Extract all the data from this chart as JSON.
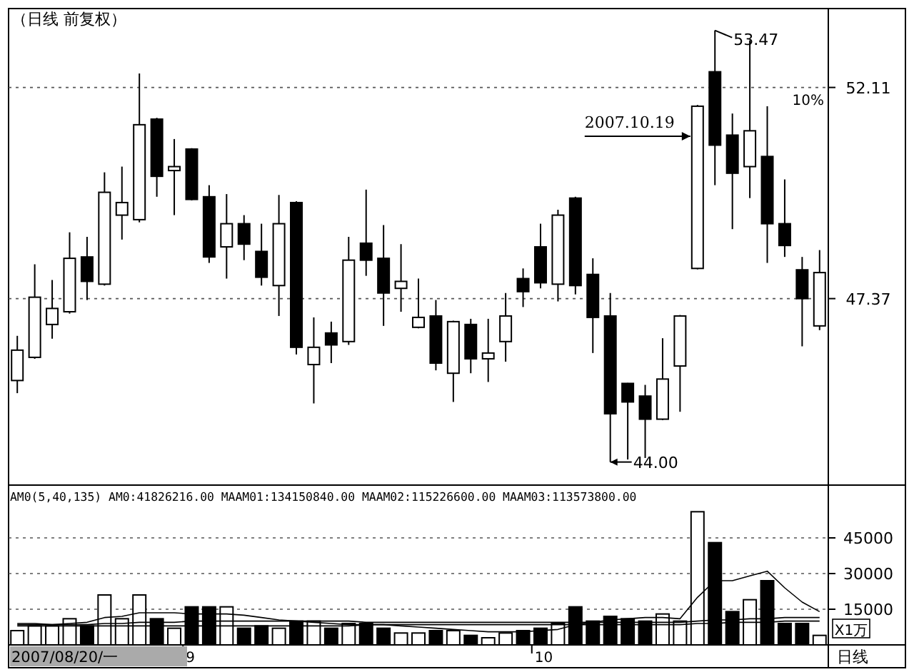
{
  "chart_data": [
    {
      "type": "candlestick",
      "title": "（日线 前复权）",
      "log": "y",
      "grid": "y",
      "tick_labels": "y",
      "ylim": [
        43.6,
        54.0
      ],
      "yticks": [
        47.37,
        52.11
      ],
      "categories": [
        null,
        null,
        null,
        null,
        null,
        null,
        null,
        null,
        null,
        null,
        null,
        null,
        null,
        null,
        null,
        null,
        null,
        null,
        null,
        null,
        null,
        null,
        null,
        null,
        null,
        null,
        null,
        null,
        null,
        null,
        null,
        null,
        null,
        null,
        null,
        null,
        null,
        null,
        null,
        null,
        null,
        null,
        null,
        null,
        null,
        null,
        null
      ],
      "ohlc": [
        [
          45.65,
          46.58,
          45.39,
          46.28
        ],
        [
          46.13,
          48.11,
          46.1,
          47.4
        ],
        [
          46.82,
          47.77,
          46.52,
          47.16
        ],
        [
          47.09,
          48.81,
          47.05,
          48.24
        ],
        [
          48.27,
          48.71,
          47.34,
          47.74
        ],
        [
          47.68,
          50.15,
          47.65,
          49.7
        ],
        [
          49.19,
          50.28,
          48.65,
          49.47
        ],
        [
          49.09,
          52.44,
          49.03,
          51.24
        ],
        [
          51.37,
          51.4,
          49.6,
          50.06
        ],
        [
          50.19,
          50.91,
          49.19,
          50.28
        ],
        [
          50.68,
          50.7,
          49.52,
          49.54
        ],
        [
          49.6,
          49.86,
          48.14,
          48.27
        ],
        [
          48.49,
          49.66,
          47.8,
          49.0
        ],
        [
          49.0,
          49.19,
          48.2,
          48.55
        ],
        [
          48.39,
          49.0,
          47.65,
          47.83
        ],
        [
          47.65,
          49.64,
          47.0,
          49.0
        ],
        [
          49.47,
          49.5,
          46.19,
          46.34
        ],
        [
          45.98,
          46.97,
          45.18,
          46.34
        ],
        [
          46.64,
          46.88,
          46.01,
          46.39
        ],
        [
          46.46,
          48.71,
          46.39,
          48.2
        ],
        [
          48.57,
          49.76,
          47.86,
          48.2
        ],
        [
          48.24,
          48.97,
          46.79,
          47.49
        ],
        [
          47.59,
          48.55,
          47.09,
          47.74
        ],
        [
          46.76,
          47.8,
          46.74,
          46.97
        ],
        [
          47.0,
          47.34,
          45.86,
          46.01
        ],
        [
          45.8,
          46.9,
          45.21,
          46.88
        ],
        [
          46.82,
          46.94,
          45.8,
          46.1
        ],
        [
          46.1,
          46.94,
          45.62,
          46.22
        ],
        [
          46.46,
          47.49,
          46.04,
          47.0
        ],
        [
          47.8,
          48.02,
          47.19,
          47.52
        ],
        [
          48.49,
          49.0,
          47.59,
          47.71
        ],
        [
          47.68,
          49.31,
          47.31,
          49.19
        ],
        [
          49.57,
          49.6,
          47.46,
          47.65
        ],
        [
          47.89,
          48.24,
          46.22,
          46.97
        ],
        [
          47.0,
          47.49,
          44.0,
          44.97
        ],
        [
          45.59,
          45.6,
          44.05,
          45.21
        ],
        [
          45.33,
          45.56,
          44.08,
          44.86
        ],
        [
          44.86,
          46.53,
          44.84,
          45.68
        ],
        [
          45.95,
          47.02,
          45.01,
          47.0
        ],
        [
          48.02,
          51.7,
          48.0,
          51.67
        ],
        [
          52.48,
          53.47,
          49.86,
          50.77
        ],
        [
          51.0,
          51.5,
          48.88,
          50.13
        ],
        [
          50.28,
          53.23,
          49.57,
          51.1
        ],
        [
          50.51,
          51.67,
          48.14,
          49.0
        ],
        [
          49.0,
          49.99,
          48.27,
          48.52
        ],
        [
          47.99,
          48.27,
          46.36,
          47.37
        ],
        [
          46.79,
          48.42,
          46.7,
          47.93
        ]
      ],
      "annotations": [
        "2007.10.19",
        "53.47",
        "44.00",
        "10%"
      ]
    },
    {
      "type": "bar",
      "title": "AM0(5,40,135) AM0:41826216.00 MAAM01:134150840.00 MAAM02:115226600.00 MAAM03:113573800.00",
      "grid": "y",
      "ylabel": "X1万",
      "ylim": [
        0,
        66000
      ],
      "yticks": [
        15000,
        30000,
        45000
      ],
      "categories": [
        null,
        null,
        null,
        null,
        null,
        null,
        null,
        null,
        null,
        null,
        "9",
        null,
        null,
        null,
        null,
        null,
        null,
        null,
        null,
        null,
        null,
        null,
        null,
        null,
        null,
        null,
        null,
        null,
        null,
        null,
        "10",
        null,
        null,
        null,
        null,
        null,
        null,
        null,
        null,
        null,
        null,
        null,
        null,
        null,
        null,
        null,
        null
      ],
      "series": [
        {
          "type": "bar",
          "values": [
            6000,
            8000,
            8000,
            11000,
            8000,
            21000,
            11000,
            21000,
            11000,
            7000,
            16000,
            16000,
            16000,
            7000,
            8000,
            7000,
            10000,
            10000,
            7000,
            9000,
            9000,
            7000,
            5000,
            5000,
            6000,
            6000,
            4000,
            3000,
            5000,
            6000,
            7000,
            9000,
            16000,
            10000,
            12000,
            11000,
            10000,
            13000,
            10000,
            56000,
            43000,
            14000,
            19000,
            27000,
            9000,
            9000,
            4000
          ],
          "colors": [
            "#ffffff",
            "#ffffff",
            "#ffffff",
            "#ffffff",
            "#000000",
            "#ffffff",
            "#ffffff",
            "#ffffff",
            "#000000",
            "#ffffff",
            "#000000",
            "#000000",
            "#ffffff",
            "#000000",
            "#000000",
            "#ffffff",
            "#000000",
            "#ffffff",
            "#000000",
            "#ffffff",
            "#000000",
            "#000000",
            "#ffffff",
            "#ffffff",
            "#000000",
            "#ffffff",
            "#000000",
            "#ffffff",
            "#ffffff",
            "#000000",
            "#000000",
            "#ffffff",
            "#000000",
            "#000000",
            "#000000",
            "#000000",
            "#000000",
            "#ffffff",
            "#ffffff",
            "#ffffff",
            "#000000",
            "#000000",
            "#ffffff",
            "#000000",
            "#000000",
            "#000000",
            "#ffffff"
          ]
        },
        {
          "type": "line",
          "color": "#000000",
          "values": [
            9000,
            9000,
            8500,
            9000,
            9500,
            11500,
            12000,
            13500,
            13500,
            13500,
            13000,
            13000,
            13000,
            12500,
            11500,
            10500,
            10000,
            9500,
            9000,
            8500,
            8500,
            8500,
            8000,
            7500,
            7000,
            6500,
            6000,
            5500,
            5500,
            5500,
            6000,
            6500,
            8500,
            9500,
            10500,
            11000,
            11500,
            11500,
            11000,
            20000,
            27000,
            27000,
            29000,
            31000,
            24000,
            18000,
            14000
          ]
        },
        {
          "type": "line",
          "color": "#000000",
          "values": [
            8500,
            8500,
            8500,
            8500,
            8500,
            9000,
            9000,
            9500,
            9500,
            9500,
            10000,
            10000,
            10000,
            10000,
            10000,
            10000,
            10000,
            10000,
            10000,
            10000,
            9500,
            9500,
            9500,
            9500,
            9500,
            9500,
            9500,
            9500,
            9500,
            9500,
            9500,
            9500,
            9500,
            9500,
            9500,
            9500,
            9500,
            9500,
            9500,
            10000,
            10500,
            10500,
            11000,
            11000,
            11500,
            11500,
            11500
          ]
        },
        {
          "type": "line",
          "color": "#000000",
          "values": [
            8000,
            8000,
            8000,
            8000,
            8000,
            8000,
            8000,
            8000,
            8000,
            8000,
            8000,
            8000,
            8000,
            8000,
            8000,
            8000,
            8000,
            8000,
            8000,
            8000,
            8500,
            8500,
            8500,
            8500,
            8500,
            8500,
            8500,
            8500,
            8500,
            8500,
            8500,
            8500,
            8500,
            8500,
            8500,
            8500,
            8500,
            8500,
            8500,
            9000,
            9000,
            9500,
            9500,
            9500,
            10000,
            10000,
            10000
          ]
        }
      ],
      "annotations": [
        "2007/08/20/一",
        "日线"
      ]
    }
  ]
}
